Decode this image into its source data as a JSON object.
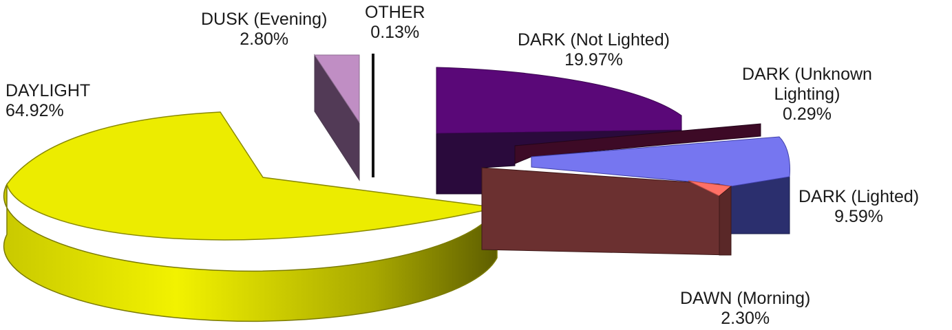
{
  "chart_data": {
    "type": "pie",
    "style": "3d-exploded",
    "slices": [
      {
        "label": "DAYLIGHT",
        "pct_label": "64.92%",
        "value": 64.92,
        "color": "#e8e800"
      },
      {
        "label": "DUSK (Evening)",
        "pct_label": "2.80%",
        "value": 2.8,
        "color": "#c08ec4"
      },
      {
        "label": "OTHER",
        "pct_label": "0.13%",
        "value": 0.13,
        "color": "#ffffff"
      },
      {
        "label": "DARK (Not Lighted)",
        "pct_label": "19.97%",
        "value": 19.97,
        "color": "#5a0878"
      },
      {
        "label": "DARK (Unknown Lighting)",
        "label_lines": [
          "DARK (Unknown",
          "Lighting)"
        ],
        "pct_label": "0.29%",
        "value": 0.29,
        "color": "#3d0a26"
      },
      {
        "label": "DARK (Lighted)",
        "pct_label": "9.59%",
        "value": 9.59,
        "color": "#7676f0"
      },
      {
        "label": "DAWN (Morning)",
        "pct_label": "2.30%",
        "value": 2.3,
        "color": "#ff7066"
      }
    ]
  }
}
